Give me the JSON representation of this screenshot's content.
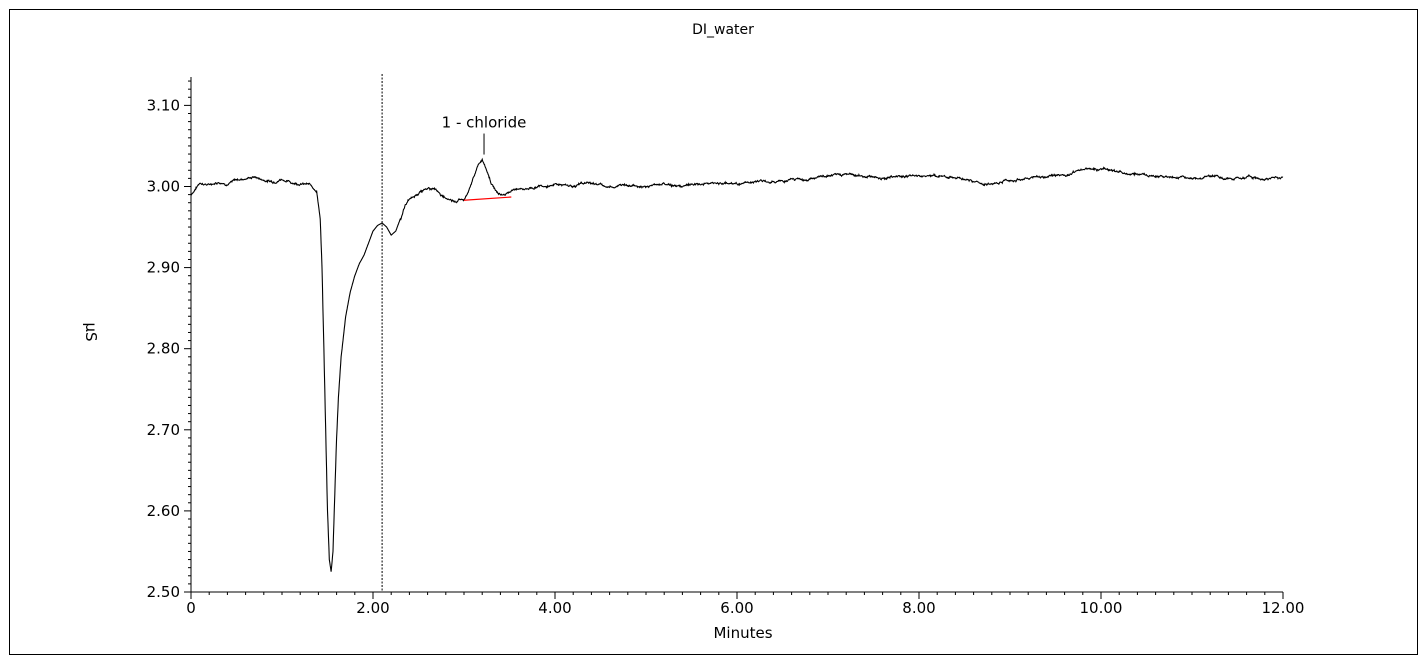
{
  "chart_data": {
    "type": "line",
    "title": "DI_water",
    "xlabel": "Minutes",
    "ylabel": "µS",
    "xlim": [
      0,
      12
    ],
    "ylim": [
      2.5,
      3.135
    ],
    "x_ticks": [
      {
        "value": 0,
        "label": "0"
      },
      {
        "value": 2,
        "label": "2.00"
      },
      {
        "value": 4,
        "label": "4.00"
      },
      {
        "value": 6,
        "label": "6.00"
      },
      {
        "value": 8,
        "label": "8.00"
      },
      {
        "value": 10,
        "label": "10.00"
      },
      {
        "value": 12,
        "label": "12.00"
      }
    ],
    "y_ticks": [
      {
        "value": 2.5,
        "label": "2.50"
      },
      {
        "value": 2.6,
        "label": "2.60"
      },
      {
        "value": 2.7,
        "label": "2.70"
      },
      {
        "value": 2.8,
        "label": "2.80"
      },
      {
        "value": 2.9,
        "label": "2.90"
      },
      {
        "value": 3.0,
        "label": "3.00"
      },
      {
        "value": 3.1,
        "label": "3.10"
      }
    ],
    "grid": false,
    "line_color": "#000000",
    "baseline_color": "#ff0000",
    "marker_line": {
      "x": 2.1
    },
    "series": [
      {
        "x": [
          0,
          0.1,
          0.2,
          0.3,
          0.4,
          0.5,
          0.6,
          0.7,
          0.8,
          0.9,
          1.0,
          1.1,
          1.2,
          1.3,
          1.38,
          1.42,
          1.44,
          1.46,
          1.48,
          1.5,
          1.52,
          1.54,
          1.56,
          1.58,
          1.6,
          1.62,
          1.65,
          1.7,
          1.75,
          1.8,
          1.85,
          1.9,
          1.95,
          2.0,
          2.05,
          2.1,
          2.15,
          2.2,
          2.25,
          2.3,
          2.35,
          2.4,
          2.5,
          2.6,
          2.7,
          2.8,
          2.9,
          3.0,
          3.05,
          3.1,
          3.15,
          3.2,
          3.25,
          3.3,
          3.35,
          3.4,
          3.45,
          3.5,
          3.55,
          3.6,
          3.7,
          3.8,
          3.9,
          4.0,
          4.2,
          4.4,
          4.6,
          4.8,
          5.0,
          5.2,
          5.4,
          5.6,
          5.8,
          6.0,
          6.2,
          6.4,
          6.6,
          6.8,
          7.0,
          7.2,
          7.4,
          7.6,
          7.8,
          8.0,
          8.2,
          8.4,
          8.6,
          8.8,
          9.0,
          9.2,
          9.4,
          9.6,
          9.8,
          10.0,
          10.2,
          10.4,
          10.6,
          10.8,
          11.0,
          11.2,
          11.4,
          11.6,
          11.8,
          12.0
        ],
        "values": [
          2.99,
          3.005,
          3.002,
          3.006,
          3.004,
          3.008,
          3.01,
          3.012,
          3.008,
          3.006,
          3.01,
          3.005,
          3.004,
          3.002,
          2.995,
          2.96,
          2.9,
          2.8,
          2.7,
          2.6,
          2.54,
          2.525,
          2.55,
          2.62,
          2.69,
          2.74,
          2.79,
          2.84,
          2.87,
          2.89,
          2.905,
          2.915,
          2.93,
          2.945,
          2.952,
          2.955,
          2.95,
          2.94,
          2.945,
          2.96,
          2.975,
          2.985,
          2.99,
          2.998,
          2.995,
          2.985,
          2.983,
          2.985,
          2.995,
          3.01,
          3.025,
          3.032,
          3.02,
          3.005,
          2.995,
          2.992,
          2.99,
          2.995,
          2.998,
          2.997,
          2.998,
          3.0,
          3.002,
          3.003,
          3.001,
          3.004,
          3.0,
          3.002,
          3.001,
          3.003,
          3.0,
          3.002,
          3.004,
          3.003,
          3.005,
          3.006,
          3.008,
          3.01,
          3.012,
          3.015,
          3.013,
          3.011,
          3.012,
          3.014,
          3.012,
          3.01,
          3.005,
          3.003,
          3.008,
          3.01,
          3.012,
          3.015,
          3.02,
          3.022,
          3.018,
          3.015,
          3.013,
          3.012,
          3.011,
          3.012,
          3.01,
          3.011,
          3.01,
          3.012
        ]
      }
    ],
    "peaks": [
      {
        "label": "1 - chloride",
        "x": 3.22,
        "y": 3.032,
        "baseline": [
          [
            3.0,
            2.983
          ],
          [
            3.52,
            2.987
          ]
        ]
      }
    ]
  }
}
